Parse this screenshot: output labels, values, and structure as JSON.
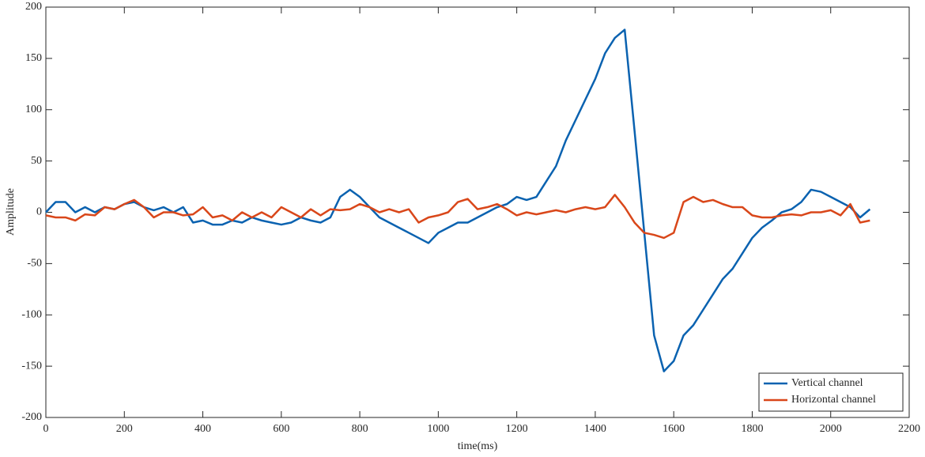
{
  "chart_data": {
    "type": "line",
    "xlabel": "time(ms)",
    "ylabel": "Amplitude",
    "x": [
      0,
      25,
      50,
      75,
      100,
      125,
      150,
      175,
      200,
      225,
      250,
      275,
      300,
      325,
      350,
      375,
      400,
      425,
      450,
      475,
      500,
      525,
      550,
      575,
      600,
      625,
      650,
      675,
      700,
      725,
      750,
      775,
      800,
      825,
      850,
      875,
      900,
      925,
      950,
      975,
      1000,
      1025,
      1050,
      1075,
      1100,
      1125,
      1150,
      1175,
      1200,
      1225,
      1250,
      1275,
      1300,
      1325,
      1350,
      1375,
      1400,
      1425,
      1450,
      1475,
      1500,
      1525,
      1550,
      1575,
      1600,
      1625,
      1650,
      1675,
      1700,
      1725,
      1750,
      1775,
      1800,
      1825,
      1850,
      1875,
      1900,
      1925,
      1950,
      1975,
      2000,
      2025,
      2050,
      2075,
      2100
    ],
    "series": [
      {
        "name": "Vertical channel",
        "color": "#0a62b0",
        "values": [
          0,
          10,
          10,
          0,
          5,
          0,
          5,
          3,
          8,
          10,
          5,
          2,
          5,
          0,
          5,
          -10,
          -8,
          -12,
          -12,
          -8,
          -10,
          -5,
          -8,
          -10,
          -12,
          -10,
          -5,
          -8,
          -10,
          -5,
          15,
          22,
          15,
          5,
          -5,
          -10,
          -15,
          -20,
          -25,
          -30,
          -20,
          -15,
          -10,
          -10,
          -5,
          0,
          5,
          8,
          15,
          12,
          15,
          30,
          45,
          70,
          90,
          110,
          130,
          155,
          170,
          178,
          80,
          -20,
          -120,
          -155,
          -145,
          -120,
          -110,
          -95,
          -80,
          -65,
          -55,
          -40,
          -25,
          -15,
          -8,
          0,
          3,
          10,
          22,
          20,
          15,
          10,
          5,
          -5,
          3
        ]
      },
      {
        "name": "Horizontal channel",
        "color": "#d9471a",
        "values": [
          -3,
          -5,
          -5,
          -8,
          -2,
          -3,
          5,
          3,
          8,
          12,
          5,
          -5,
          0,
          0,
          -3,
          -2,
          5,
          -5,
          -3,
          -8,
          0,
          -5,
          0,
          -5,
          5,
          0,
          -5,
          3,
          -3,
          3,
          2,
          3,
          8,
          5,
          0,
          3,
          0,
          3,
          -10,
          -5,
          -3,
          0,
          10,
          13,
          3,
          5,
          8,
          3,
          -3,
          0,
          -2,
          0,
          2,
          0,
          3,
          5,
          3,
          5,
          17,
          5,
          -10,
          -20,
          -22,
          -25,
          -20,
          10,
          15,
          10,
          12,
          8,
          5,
          5,
          -3,
          -5,
          -5,
          -3,
          -2,
          -3,
          0,
          0,
          2,
          -3,
          8,
          -10,
          -8
        ]
      }
    ],
    "xlim": [
      0,
      2200
    ],
    "xticks": [
      0,
      200,
      400,
      600,
      800,
      1000,
      1200,
      1400,
      1600,
      1800,
      2000,
      2200
    ],
    "ylim": [
      -200,
      200
    ],
    "yticks": [
      -200,
      -150,
      -100,
      -50,
      0,
      50,
      100,
      150,
      200
    ],
    "legend": "lower right"
  }
}
